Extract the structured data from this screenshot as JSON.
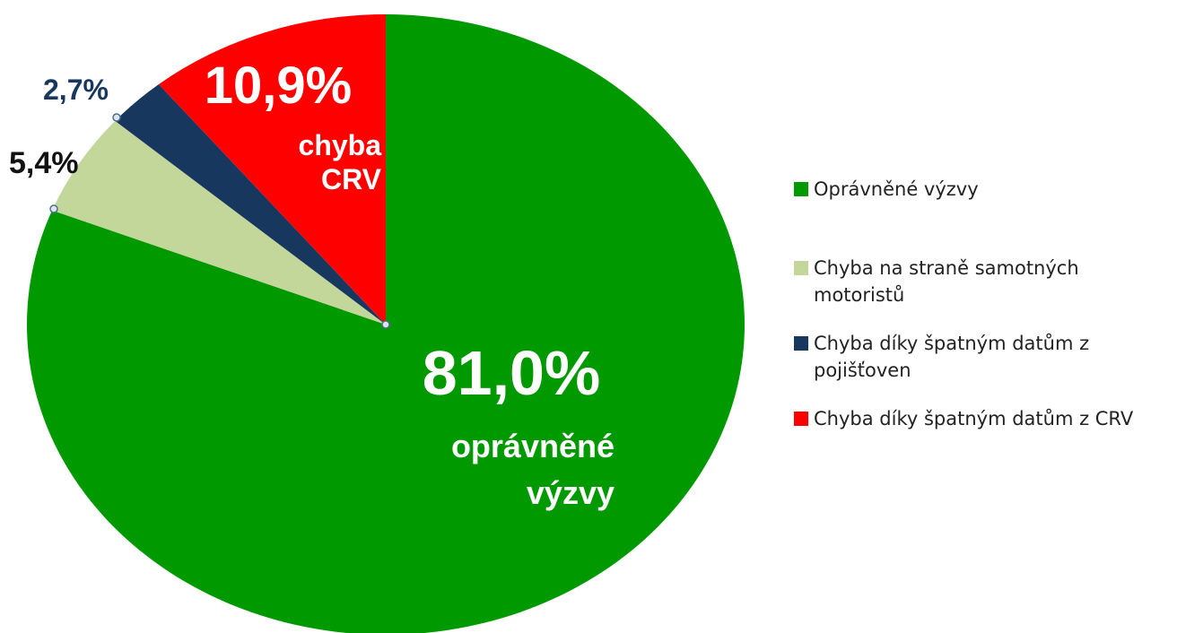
{
  "chart_data": {
    "type": "pie",
    "categories": [
      "Oprávněné výzvy",
      "Chyba na straně samotných motoristů",
      "Chyba díky špatným datům z pojišťoven",
      "Chyba díky špatným datům z CRV"
    ],
    "values": [
      81.0,
      5.4,
      2.7,
      10.9
    ],
    "value_labels": [
      "81,0%",
      "5,4%",
      "2,7%",
      "10,9%"
    ],
    "colors": [
      "#009900",
      "#c4d79b",
      "#17375e",
      "#ff0000"
    ],
    "annotations": [
      [
        "oprávněné",
        "výzvy"
      ],
      [
        "chyba",
        "CRV"
      ]
    ],
    "legend": "right"
  }
}
